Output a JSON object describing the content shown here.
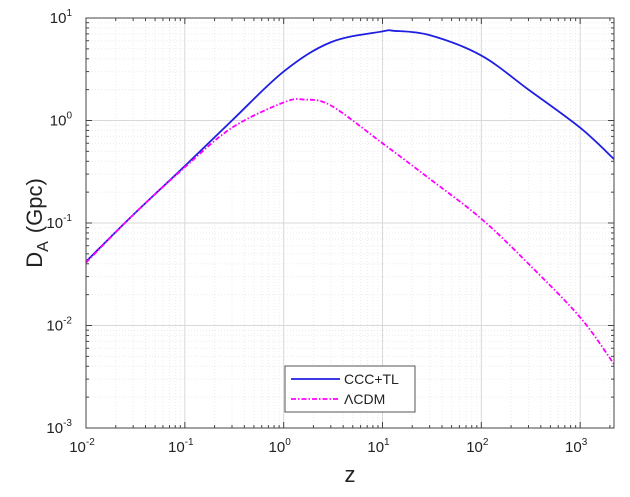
{
  "chart_data": {
    "type": "line",
    "title": "",
    "xlabel": "z",
    "ylabel": "D",
    "ylabel_sub": "A",
    "ylabel_unit": "(Gpc)",
    "xscale": "log",
    "yscale": "log",
    "xlim": [
      0.01,
      2200
    ],
    "ylim": [
      0.001,
      10
    ],
    "grid": true,
    "legend_position": "bottom-center",
    "x_ticks": [
      {
        "base": "10",
        "exp": "-2",
        "v": 0.01
      },
      {
        "base": "10",
        "exp": "-1",
        "v": 0.1
      },
      {
        "base": "10",
        "exp": "0",
        "v": 1
      },
      {
        "base": "10",
        "exp": "1",
        "v": 10
      },
      {
        "base": "10",
        "exp": "2",
        "v": 100
      },
      {
        "base": "10",
        "exp": "3",
        "v": 1000
      }
    ],
    "y_ticks": [
      {
        "base": "10",
        "exp": "-3",
        "v": 0.001
      },
      {
        "base": "10",
        "exp": "-2",
        "v": 0.01
      },
      {
        "base": "10",
        "exp": "-1",
        "v": 0.1
      },
      {
        "base": "10",
        "exp": "0",
        "v": 1
      },
      {
        "base": "10",
        "exp": "1",
        "v": 10
      }
    ],
    "series": [
      {
        "name": "CCC+TL",
        "color": "#1f1fe0",
        "style": "solid",
        "x": [
          0.01,
          0.03,
          0.1,
          0.3,
          1,
          3,
          10,
          13,
          30,
          100,
          300,
          1000,
          2200
        ],
        "y": [
          0.042,
          0.12,
          0.36,
          1.0,
          3.0,
          5.8,
          7.4,
          7.5,
          6.8,
          4.3,
          2.0,
          0.85,
          0.42
        ]
      },
      {
        "name": "ΛCDM",
        "color": "#ff00ff",
        "style": "dashdot",
        "x": [
          0.01,
          0.03,
          0.1,
          0.3,
          1,
          1.6,
          3,
          10,
          30,
          100,
          300,
          1000,
          2200
        ],
        "y": [
          0.041,
          0.12,
          0.35,
          0.85,
          1.5,
          1.6,
          1.4,
          0.6,
          0.27,
          0.11,
          0.04,
          0.012,
          0.0042
        ]
      }
    ]
  }
}
